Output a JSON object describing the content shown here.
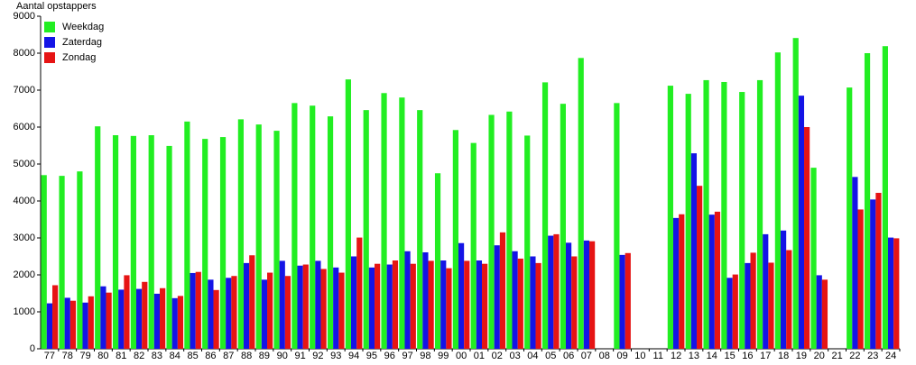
{
  "chart_data": {
    "type": "bar",
    "y_label": "Aantal opstappers",
    "categories": [
      "77",
      "78",
      "79",
      "80",
      "81",
      "82",
      "83",
      "84",
      "85",
      "86",
      "87",
      "88",
      "89",
      "90",
      "91",
      "92",
      "93",
      "94",
      "95",
      "96",
      "97",
      "98",
      "99",
      "00",
      "01",
      "02",
      "03",
      "04",
      "05",
      "06",
      "07",
      "08",
      "09",
      "10",
      "11",
      "12",
      "13",
      "14",
      "15",
      "16",
      "17",
      "18",
      "19",
      "20",
      "21",
      "22",
      "23",
      "24"
    ],
    "series": [
      {
        "name": "Weekdag",
        "color": "#22ee22",
        "values": [
          4700,
          4680,
          4800,
          6020,
          5780,
          5760,
          5780,
          5490,
          6150,
          5680,
          5730,
          6210,
          6070,
          5900,
          6650,
          6580,
          6290,
          7290,
          6460,
          6920,
          6800,
          6460,
          4750,
          5920,
          5570,
          6330,
          6420,
          5770,
          7210,
          6630,
          7870,
          null,
          6650,
          null,
          null,
          7120,
          6900,
          7270,
          7220,
          6950,
          7270,
          8020,
          8410,
          4900,
          null,
          7070,
          8000,
          8190
        ]
      },
      {
        "name": "Zaterdag",
        "color": "#1414e6",
        "values": [
          1230,
          1380,
          1250,
          1690,
          1600,
          1620,
          1490,
          1370,
          2050,
          1870,
          1920,
          2320,
          1870,
          2380,
          2250,
          2380,
          2200,
          2500,
          2200,
          2280,
          2640,
          2610,
          2390,
          2860,
          2390,
          2800,
          2640,
          2500,
          3060,
          2870,
          2930,
          null,
          2540,
          null,
          null,
          3540,
          5290,
          3630,
          1920,
          2320,
          3100,
          3200,
          6850,
          1990,
          null,
          4650,
          4040,
          3010
        ]
      },
      {
        "name": "Zondag",
        "color": "#e61414",
        "values": [
          1720,
          1300,
          1420,
          1520,
          1990,
          1810,
          1640,
          1430,
          2080,
          1590,
          1970,
          2530,
          2060,
          1970,
          2280,
          2160,
          2060,
          3010,
          2300,
          2390,
          2300,
          2380,
          2180,
          2380,
          2300,
          3150,
          2440,
          2320,
          3100,
          2500,
          2910,
          null,
          2590,
          null,
          null,
          3640,
          4410,
          3710,
          2010,
          2600,
          2330,
          2670,
          6000,
          1870,
          null,
          3770,
          4220,
          2990
        ]
      }
    ],
    "ylim": [
      0,
      9000
    ],
    "yticks": [
      0,
      1000,
      2000,
      3000,
      4000,
      5000,
      6000,
      7000,
      8000,
      9000
    ],
    "grid": false,
    "legend": "top-left"
  }
}
